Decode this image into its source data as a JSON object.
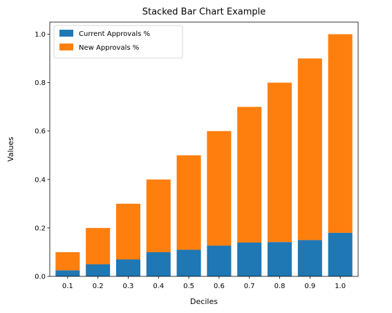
{
  "chart_data": {
    "type": "bar",
    "stacked": true,
    "title": "Stacked Bar Chart Example",
    "xlabel": "Deciles",
    "ylabel": "Values",
    "categories": [
      "0.1",
      "0.2",
      "0.3",
      "0.4",
      "0.5",
      "0.6",
      "0.7",
      "0.8",
      "0.9",
      "1.0"
    ],
    "series": [
      {
        "name": "Current Approvals %",
        "color": "#1f77b4",
        "values": [
          0.025,
          0.05,
          0.07,
          0.1,
          0.11,
          0.127,
          0.14,
          0.142,
          0.15,
          0.18
        ]
      },
      {
        "name": "New Approvals %",
        "color": "#ff7f0e",
        "values": [
          0.075,
          0.15,
          0.23,
          0.3,
          0.39,
          0.473,
          0.56,
          0.658,
          0.75,
          0.82
        ]
      }
    ],
    "ylim": [
      0,
      1.05
    ],
    "yticks": [
      "0.0",
      "0.2",
      "0.4",
      "0.6",
      "0.8",
      "1.0"
    ],
    "grid": false,
    "legend": "top-left"
  }
}
